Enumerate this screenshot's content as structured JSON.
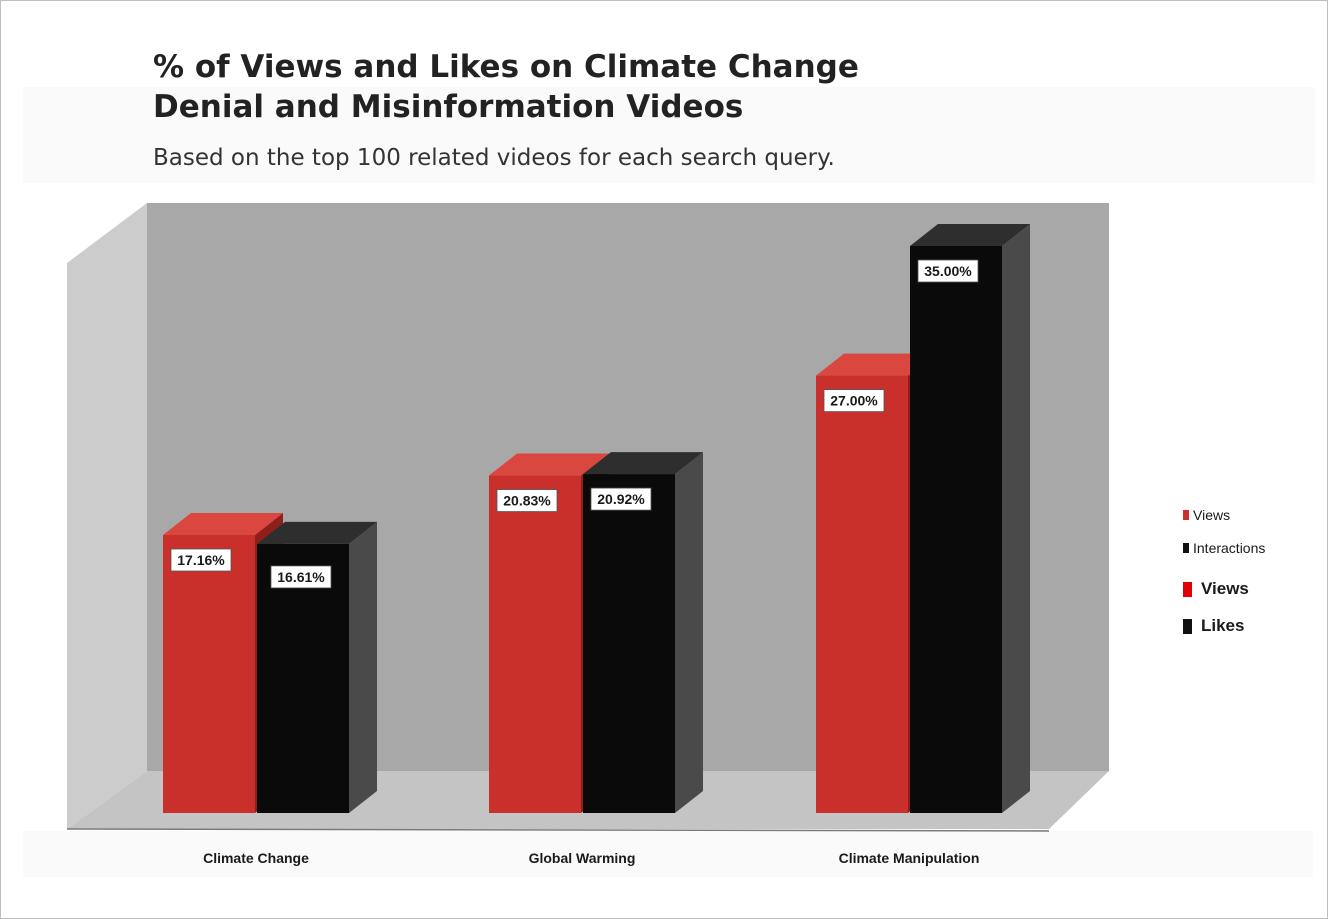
{
  "title_line1": "% of Views and Likes on Climate Change",
  "title_line2": "Denial and Misinformation Videos",
  "subtitle": "Based on the top 100 related videos for each search query.",
  "colors": {
    "views": "#c9302c",
    "interactions": "#0a0a0a",
    "legend_views": "#e00000"
  },
  "legend": [
    {
      "label": "Views",
      "color": "#c9302c",
      "style": "small"
    },
    {
      "label": "Interactions",
      "color": "#111111",
      "style": "small"
    },
    {
      "label": "Views",
      "color": "#e00000",
      "style": "big"
    },
    {
      "label": "Likes",
      "color": "#111111",
      "style": "big"
    }
  ],
  "chart_data": {
    "type": "bar",
    "style": "3d-clustered",
    "categories": [
      "Climate Change",
      "Global Warming",
      "Climate Manipulation"
    ],
    "series": [
      {
        "name": "Views",
        "values": [
          17.16,
          20.83,
          27.0
        ]
      },
      {
        "name": "Interactions",
        "values": [
          16.61,
          20.92,
          35.0
        ]
      }
    ],
    "data_labels": [
      [
        "17.16%",
        "20.83%",
        "27.00%"
      ],
      [
        "16.61%",
        "20.92%",
        "35.00%"
      ]
    ],
    "legend_position": "right"
  }
}
